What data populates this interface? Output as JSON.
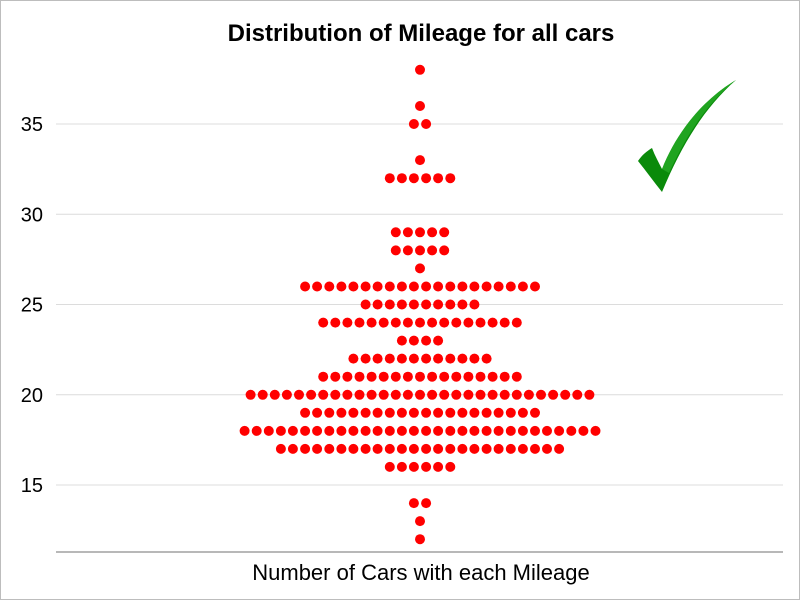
{
  "chart_data": {
    "type": "scatter",
    "subtype": "dot-plot",
    "title": "Distribution of Mileage for all cars",
    "xlabel": "Number of Cars with each Mileage",
    "ylabel": "",
    "ylim": [
      11.5,
      38.5
    ],
    "yticks": [
      15,
      20,
      25,
      30,
      35
    ],
    "grid": true,
    "legend": "none",
    "series": [
      {
        "mileage": [
          12,
          13,
          14,
          16,
          17,
          18,
          19,
          20,
          21,
          22,
          23,
          24,
          25,
          26,
          27,
          28,
          29,
          32,
          33,
          35,
          36,
          38
        ],
        "number_of_cars": [
          1,
          1,
          2,
          6,
          24,
          30,
          20,
          29,
          17,
          12,
          4,
          17,
          10,
          20,
          1,
          5,
          5,
          6,
          1,
          2,
          1,
          1
        ]
      }
    ],
    "colors": {
      "points": "#ff0000",
      "grid": "#dcdcdc",
      "axis": "#a0a0a0",
      "checkmark": "#008000"
    },
    "annotations": [
      {
        "type": "icon",
        "name": "checkmark-icon",
        "position": "top-right"
      }
    ]
  }
}
